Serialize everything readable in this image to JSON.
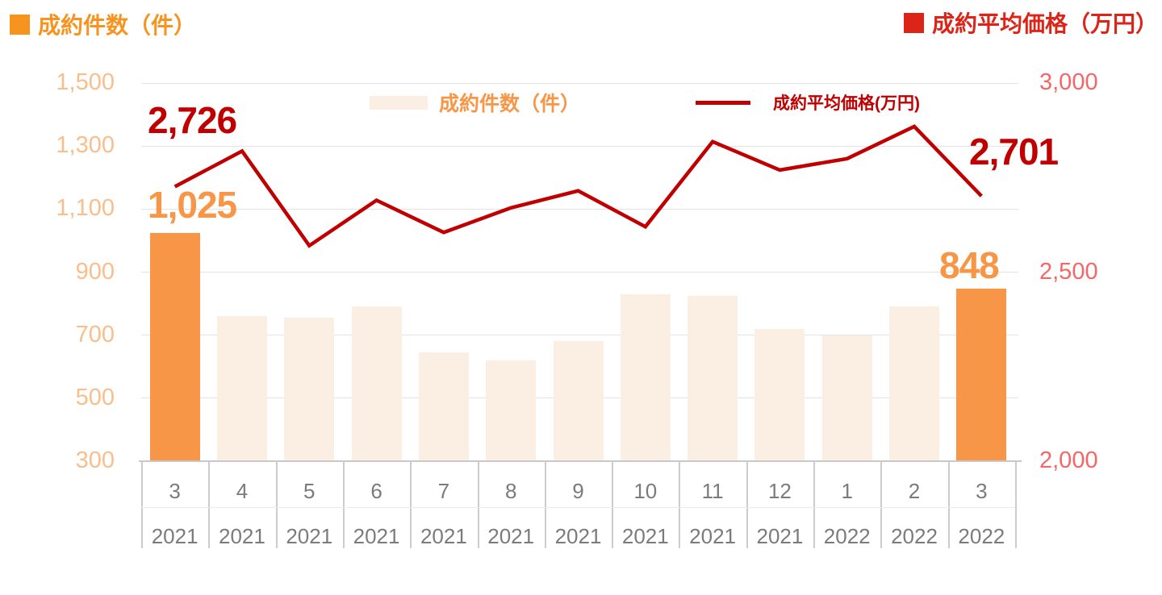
{
  "header": {
    "left_title": "成約件数（件）",
    "right_title": "成約平均価格（万円）"
  },
  "legend": {
    "bar_label": "成約件数（件）",
    "line_label": "成約平均価格(万円)"
  },
  "annotations": {
    "first_line_value": "2,726",
    "first_bar_value": "1,025",
    "last_bar_value": "848",
    "last_line_value": "2,701"
  },
  "colors": {
    "title_orange": "#F79420",
    "title_red": "#DD2418",
    "bar_highlight": "#F79646",
    "bar_normal": "#FBEEE3",
    "line_red": "#C00000",
    "left_axis_label": "#F9BE8C",
    "right_axis_label": "#F56767",
    "gridline": "#E3E3E3",
    "axis_line": "#C9C7C7",
    "table_border": "#CDCBCB",
    "table_inner_divider": "#EDEAEA",
    "category_text": "#7B7B7B"
  },
  "chart_data": {
    "type": "bar",
    "subtype": "combo-bar-line-dual-axis",
    "categories": [
      {
        "month": "3",
        "year": "2021"
      },
      {
        "month": "4",
        "year": "2021"
      },
      {
        "month": "5",
        "year": "2021"
      },
      {
        "month": "6",
        "year": "2021"
      },
      {
        "month": "7",
        "year": "2021"
      },
      {
        "month": "8",
        "year": "2021"
      },
      {
        "month": "9",
        "year": "2021"
      },
      {
        "month": "10",
        "year": "2021"
      },
      {
        "month": "11",
        "year": "2021"
      },
      {
        "month": "12",
        "year": "2021"
      },
      {
        "month": "1",
        "year": "2022"
      },
      {
        "month": "2",
        "year": "2022"
      },
      {
        "month": "3",
        "year": "2022"
      }
    ],
    "series": [
      {
        "name": "成約件数（件）",
        "type": "bar",
        "axis": "left",
        "values": [
          1025,
          760,
          755,
          790,
          645,
          620,
          680,
          830,
          825,
          720,
          700,
          790,
          848
        ],
        "highlight_indices": [
          0,
          12
        ]
      },
      {
        "name": "成約平均価格(万円)",
        "type": "line",
        "axis": "right",
        "values": [
          2726,
          2820,
          2570,
          2690,
          2605,
          2670,
          2715,
          2620,
          2845,
          2770,
          2800,
          2885,
          2701
        ]
      }
    ],
    "left_axis": {
      "min": 300,
      "max": 1500,
      "tick_step": 200,
      "ticks": [
        "1,500",
        "1,300",
        "1,100",
        "900",
        "700",
        "500",
        "300"
      ]
    },
    "right_axis": {
      "min": 2000,
      "max": 3000,
      "tick_step": 500,
      "ticks": [
        "3,000",
        "2,500",
        "2,000"
      ]
    },
    "grid": true,
    "legend_position": "top-center"
  }
}
